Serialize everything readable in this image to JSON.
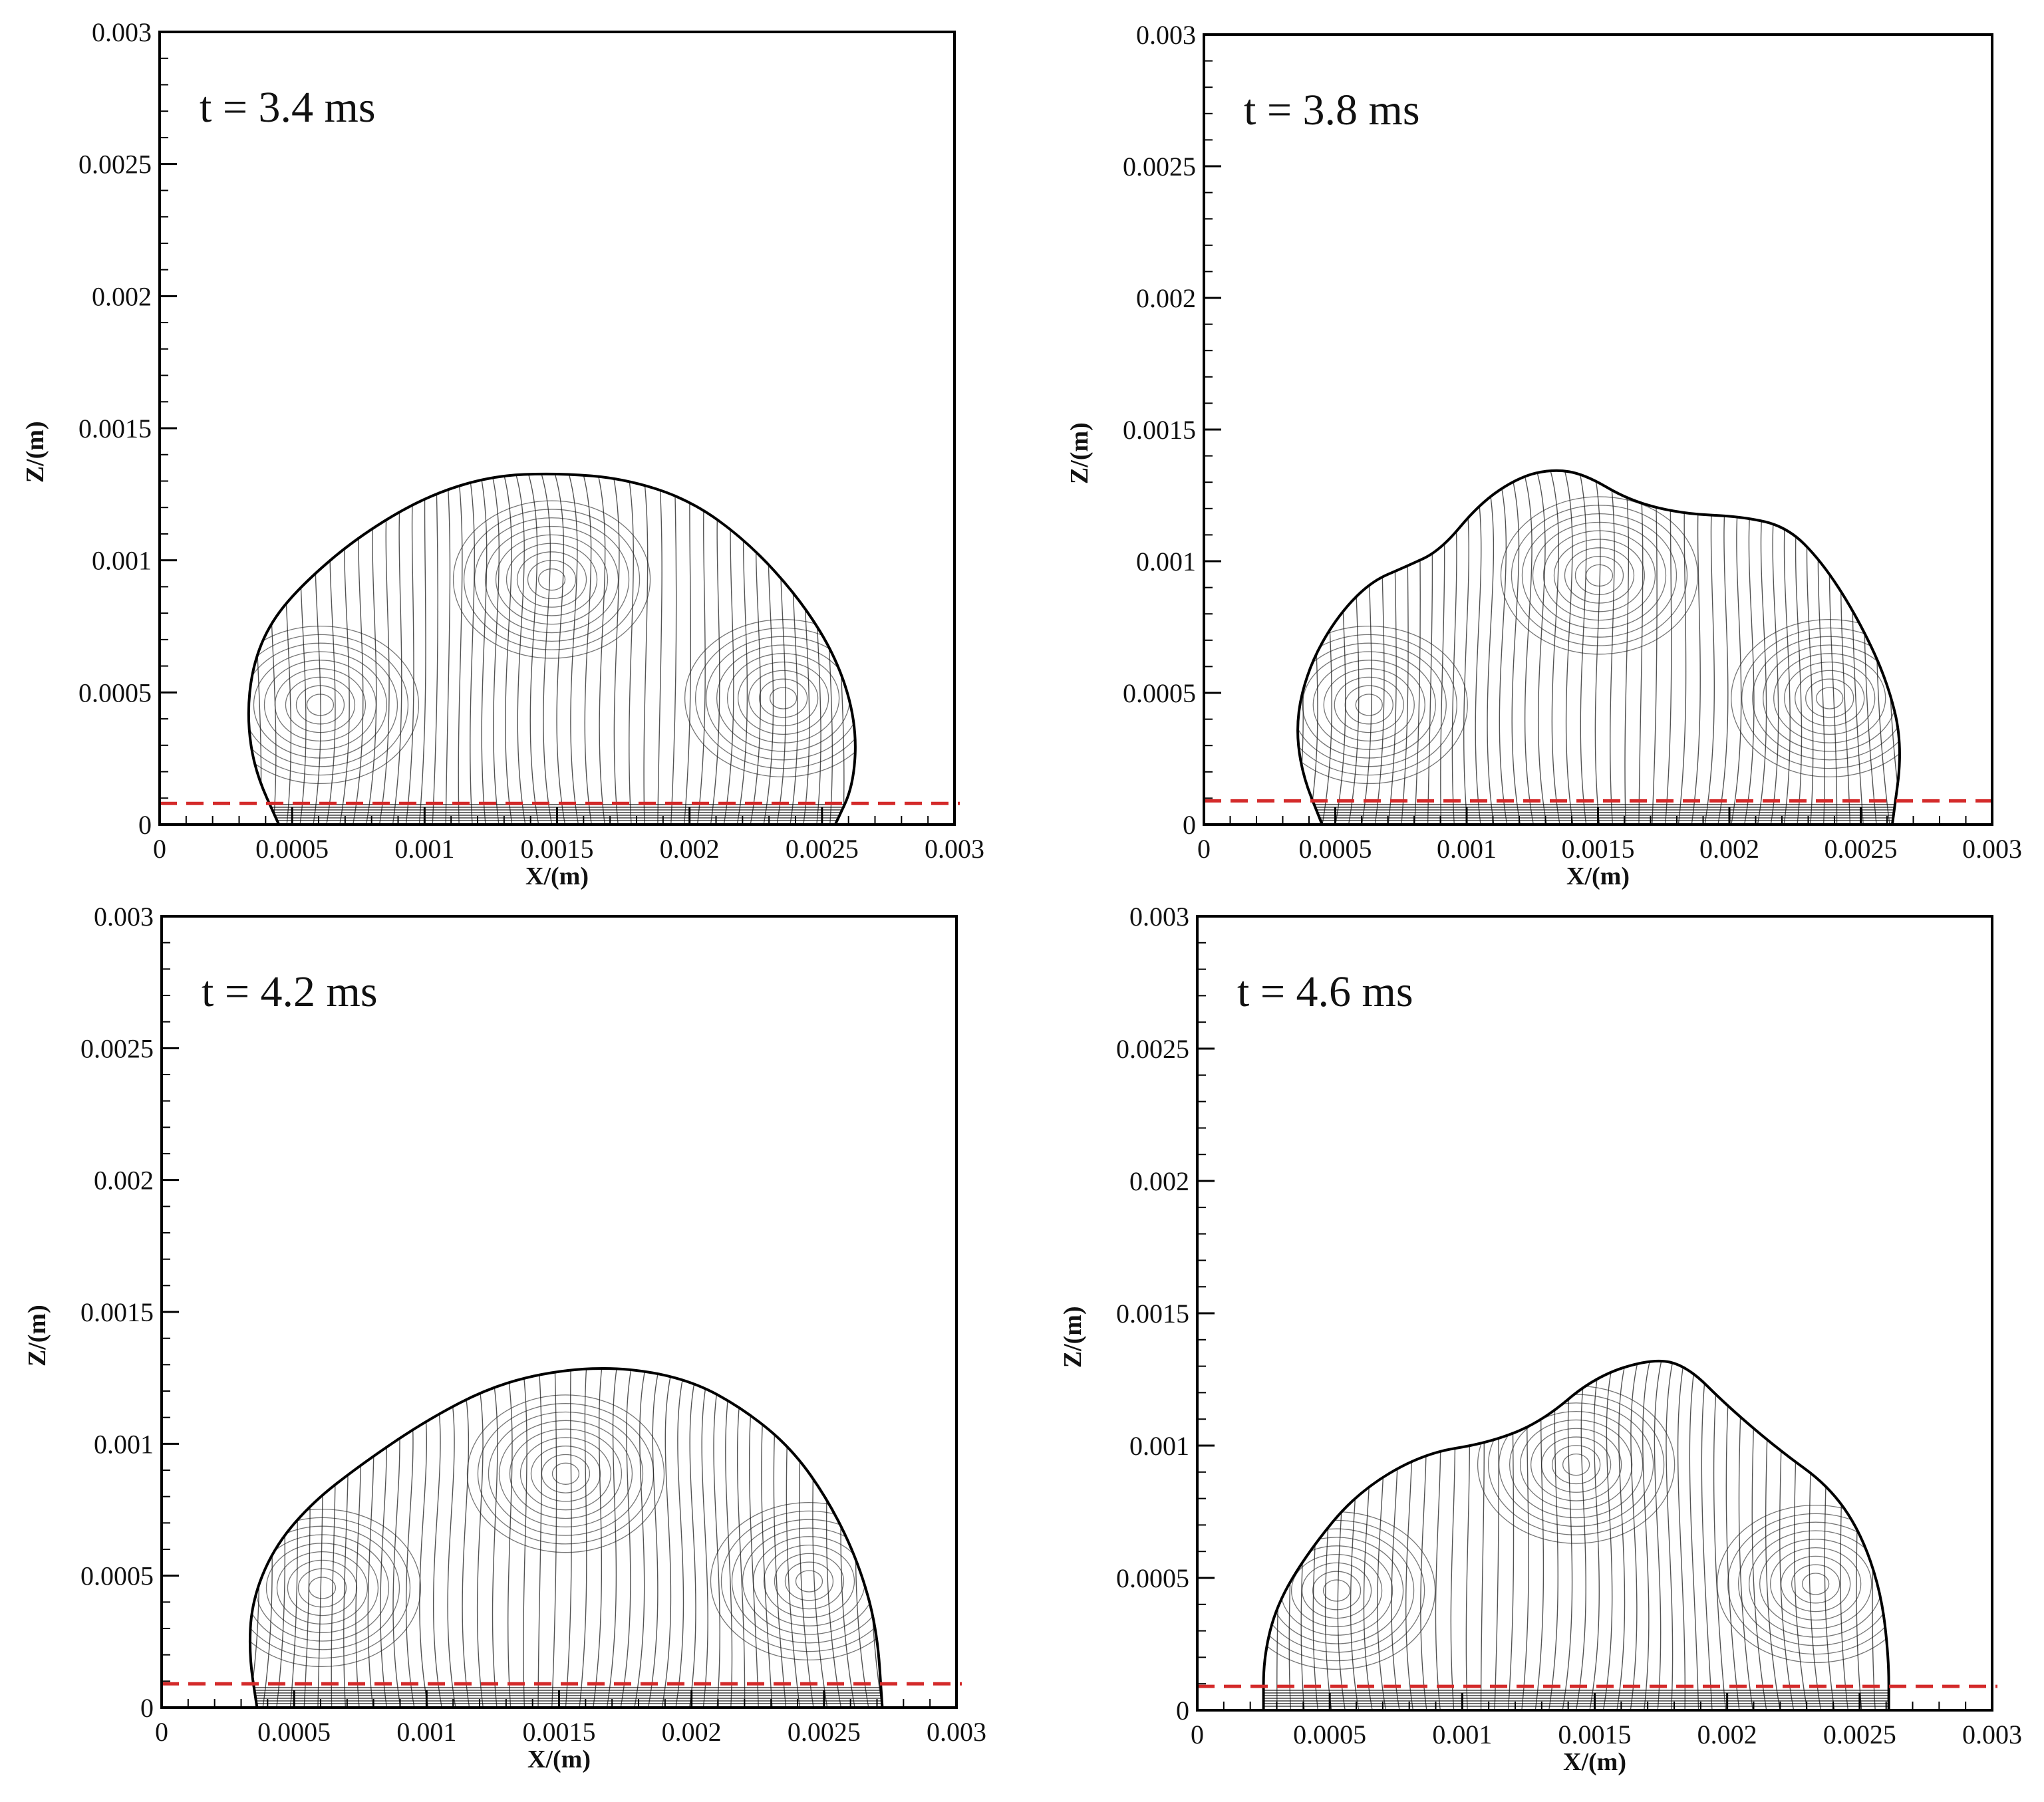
{
  "figure": {
    "panels": [
      {
        "time_label": "t = 3.4 ms",
        "xlabel": "X/(m)",
        "ylabel": "Z/(m)",
        "x_ticks": [
          "0",
          "0.0005",
          "0.001",
          "0.0015",
          "0.002",
          "0.0025",
          "0.003"
        ],
        "y_ticks": [
          "0",
          "0.0005",
          "0.001",
          "0.0015",
          "0.002",
          "0.0025",
          "0.003"
        ]
      },
      {
        "time_label": "t = 3.8 ms",
        "xlabel": "X/(m)",
        "ylabel": "Z/(m)",
        "x_ticks": [
          "0",
          "0.0005",
          "0.001",
          "0.0015",
          "0.002",
          "0.0025",
          "0.003"
        ],
        "y_ticks": [
          "0",
          "0.0005",
          "0.001",
          "0.0015",
          "0.002",
          "0.0025",
          "0.003"
        ]
      },
      {
        "time_label": "t = 4.2 ms",
        "xlabel": "X/(m)",
        "ylabel": "Z/(m)",
        "x_ticks": [
          "0",
          "0.0005",
          "0.001",
          "0.0015",
          "0.002",
          "0.0025",
          "0.003"
        ],
        "y_ticks": [
          "0",
          "0.0005",
          "0.001",
          "0.0015",
          "0.002",
          "0.0025",
          "0.003"
        ]
      },
      {
        "time_label": "t = 4.6 ms",
        "xlabel": "X/(m)",
        "ylabel": "Z/(m)",
        "x_ticks": [
          "0",
          "0.0005",
          "0.001",
          "0.0015",
          "0.002",
          "0.0025",
          "0.003"
        ],
        "y_ticks": [
          "0",
          "0.0005",
          "0.001",
          "0.0015",
          "0.002",
          "0.0025",
          "0.003"
        ]
      }
    ]
  },
  "chart_data": [
    {
      "type": "line",
      "time_label": "t = 3.4 ms",
      "xlabel": "X/(m)",
      "ylabel": "Z/(m)",
      "xlim": [
        0,
        0.003
      ],
      "ylim": [
        0,
        0.003
      ],
      "reference_line": {
        "z": 8e-05,
        "color": "#d42a2a",
        "style": "dashed"
      },
      "series": [
        {
          "x": [
            0.00045,
            0.00036,
            0.00033,
            0.00035,
            0.00042,
            0.00055,
            0.00075,
            0.001,
            0.00125,
            0.0015,
            0.00175,
            0.002,
            0.00222,
            0.00242,
            0.00256,
            0.00263,
            0.00262,
            0.00255
          ],
          "y": [
            0,
            0.0002,
            0.0004,
            0.0006,
            0.00077,
            0.00092,
            0.00109,
            0.00124,
            0.00132,
            0.00133,
            0.00131,
            0.00123,
            0.00107,
            0.00085,
            0.00062,
            0.00038,
            0.00015,
            0
          ]
        }
      ]
    },
    {
      "type": "line",
      "time_label": "t = 3.8 ms",
      "xlabel": "X/(m)",
      "ylabel": "Z/(m)",
      "xlim": [
        0,
        0.003
      ],
      "ylim": [
        0,
        0.003
      ],
      "reference_line": {
        "z": 9e-05,
        "color": "#d42a2a",
        "style": "dashed"
      },
      "series": [
        {
          "x": [
            0.00045,
            0.00037,
            0.00035,
            0.0004,
            0.0005,
            0.00063,
            0.00077,
            0.0009,
            0.00105,
            0.0012,
            0.00133,
            0.00145,
            0.00162,
            0.00182,
            0.00205,
            0.00222,
            0.00235,
            0.00248,
            0.0026,
            0.00266,
            0.00262
          ],
          "y": [
            0,
            0.0002,
            0.0004,
            0.0006,
            0.00078,
            0.00092,
            0.00098,
            0.00104,
            0.00122,
            0.00132,
            0.00135,
            0.00133,
            0.00123,
            0.00118,
            0.00117,
            0.00113,
            0.001,
            0.0008,
            0.00055,
            0.0003,
            0
          ]
        }
      ]
    },
    {
      "type": "line",
      "time_label": "t = 4.2 ms",
      "xlabel": "X/(m)",
      "ylabel": "Z/(m)",
      "xlim": [
        0,
        0.003
      ],
      "ylim": [
        0,
        0.003
      ],
      "reference_line": {
        "z": 9e-05,
        "color": "#d42a2a",
        "style": "dashed"
      },
      "series": [
        {
          "x": [
            0.00036,
            0.00033,
            0.00034,
            0.00042,
            0.00056,
            0.00075,
            0.001,
            0.00125,
            0.0015,
            0.00175,
            0.002,
            0.0022,
            0.00238,
            0.00252,
            0.00263,
            0.0027,
            0.00272
          ],
          "y": [
            0,
            0.0002,
            0.0004,
            0.0006,
            0.00077,
            0.00092,
            0.00109,
            0.00122,
            0.00128,
            0.00129,
            0.00124,
            0.00113,
            0.00098,
            0.00078,
            0.00055,
            0.0003,
            0
          ]
        }
      ]
    },
    {
      "type": "line",
      "time_label": "t = 4.6 ms",
      "xlabel": "X/(m)",
      "ylabel": "Z/(m)",
      "xlim": [
        0,
        0.003
      ],
      "ylim": [
        0,
        0.003
      ],
      "reference_line": {
        "z": 9e-05,
        "color": "#d42a2a",
        "style": "dashed"
      },
      "series": [
        {
          "x": [
            0.00025,
            0.00025,
            0.0003,
            0.00042,
            0.0006,
            0.00085,
            0.0011,
            0.0013,
            0.0015,
            0.00172,
            0.00185,
            0.002,
            0.0022,
            0.00238,
            0.0025,
            0.00258,
            0.00261,
            0.00261
          ],
          "y": [
            0,
            0.0002,
            0.0004,
            0.0006,
            0.00082,
            0.00097,
            0.00101,
            0.00109,
            0.00126,
            0.00133,
            0.0013,
            0.00115,
            0.00098,
            0.00085,
            0.00068,
            0.00045,
            0.0002,
            0
          ]
        }
      ]
    }
  ]
}
